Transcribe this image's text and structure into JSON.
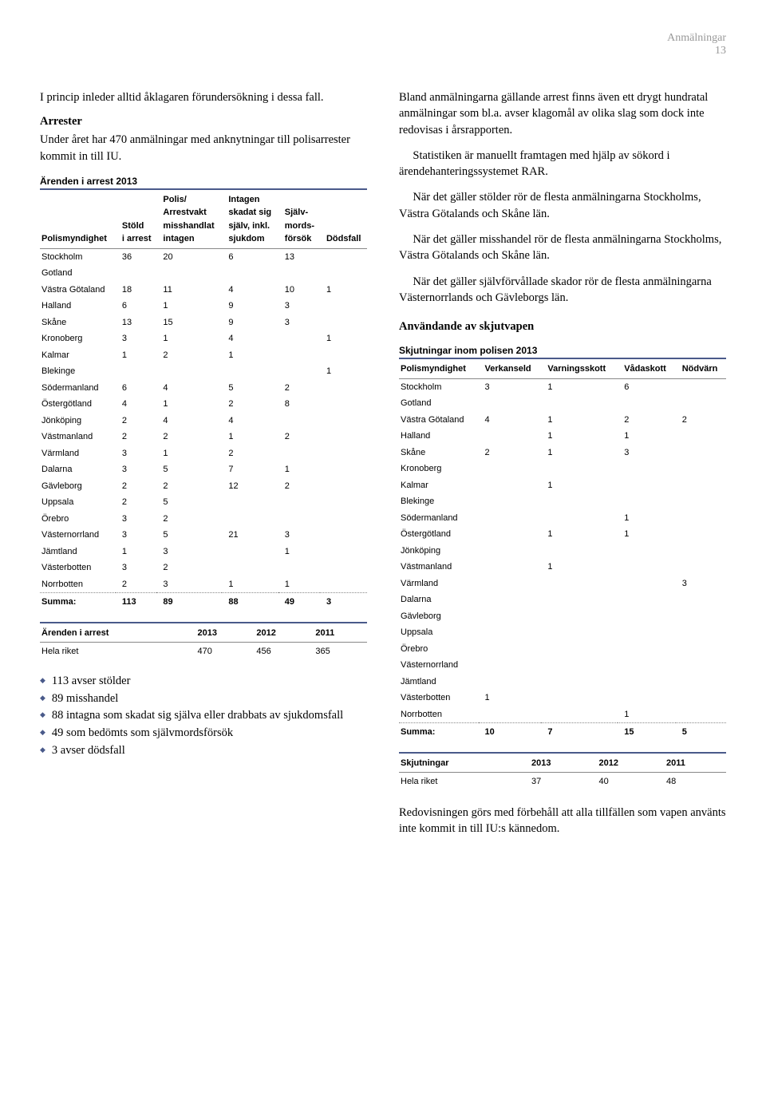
{
  "header": {
    "section": "Anmälningar",
    "page": "13"
  },
  "left": {
    "intro": "I princip inleder alltid åklagaren förundersökning i dessa fall.",
    "arrester_head": "Arrester",
    "arrester_text": "Under året har 470 anmälningar med anknytningar till polisarrester kommit in till IU.",
    "table1": {
      "title": "Ärenden i arrest 2013",
      "cols": [
        "Polismyndighet",
        "Stöld i arrest",
        "Polis/ Arrestvakt misshandlat intagen",
        "Intagen skadat sig själv, inkl. sjukdom",
        "Själv-mords-försök",
        "Dödsfall"
      ],
      "rows": [
        [
          "Stockholm",
          "36",
          "20",
          "6",
          "13",
          ""
        ],
        [
          "Gotland",
          "",
          "",
          "",
          "",
          ""
        ],
        [
          "Västra Götaland",
          "18",
          "11",
          "4",
          "10",
          "1"
        ],
        [
          "Halland",
          "6",
          "1",
          "9",
          "3",
          ""
        ],
        [
          "Skåne",
          "13",
          "15",
          "9",
          "3",
          ""
        ],
        [
          "Kronoberg",
          "3",
          "1",
          "4",
          "",
          "1"
        ],
        [
          "Kalmar",
          "1",
          "2",
          "1",
          "",
          ""
        ],
        [
          "Blekinge",
          "",
          "",
          "",
          "",
          "1"
        ],
        [
          "Södermanland",
          "6",
          "4",
          "5",
          "2",
          ""
        ],
        [
          "Östergötland",
          "4",
          "1",
          "2",
          "8",
          ""
        ],
        [
          "Jönköping",
          "2",
          "4",
          "4",
          "",
          ""
        ],
        [
          "Västmanland",
          "2",
          "2",
          "1",
          "2",
          ""
        ],
        [
          "Värmland",
          "3",
          "1",
          "2",
          "",
          ""
        ],
        [
          "Dalarna",
          "3",
          "5",
          "7",
          "1",
          ""
        ],
        [
          "Gävleborg",
          "2",
          "2",
          "12",
          "2",
          ""
        ],
        [
          "Uppsala",
          "2",
          "5",
          "",
          "",
          ""
        ],
        [
          "Örebro",
          "3",
          "2",
          "",
          "",
          ""
        ],
        [
          "Västernorrland",
          "3",
          "5",
          "21",
          "3",
          ""
        ],
        [
          "Jämtland",
          "1",
          "3",
          "",
          "1",
          ""
        ],
        [
          "Västerbotten",
          "3",
          "2",
          "",
          "",
          ""
        ],
        [
          "Norrbotten",
          "2",
          "3",
          "1",
          "1",
          ""
        ]
      ],
      "summa": [
        "Summa:",
        "113",
        "89",
        "88",
        "49",
        "3"
      ]
    },
    "table2": {
      "title": "",
      "cols": [
        "Ärenden i arrest",
        "2013",
        "2012",
        "2011"
      ],
      "rows": [
        [
          "Hela riket",
          "470",
          "456",
          "365"
        ]
      ]
    },
    "bullets": [
      "113 avser stölder",
      "89 misshandel",
      "88 intagna som skadat sig själva eller drabbats av sjukdomsfall",
      "49 som bedömts som självmordsförsök",
      "3 avser dödsfall"
    ]
  },
  "right": {
    "p1": "Bland anmälningarna gällande arrest finns även ett drygt hundratal anmälningar som bl.a. avser klagomål av olika slag som dock inte redovisas i årsrapporten.",
    "p2": "Statistiken är manuellt framtagen med hjälp av sökord i ärendehanteringssystemet RAR.",
    "p3": "När det gäller stölder rör de flesta anmälningarna Stockholms, Västra Götalands och Skåne län.",
    "p4": "När det gäller misshandel rör de flesta anmälningarna Stockholms, Västra Götalands och Skåne län.",
    "p5": "När det gäller självförvållade skador rör de flesta anmälningarna Västernorrlands och Gävleborgs län.",
    "skjut_head": "Användande av skjutvapen",
    "table3": {
      "title": "Skjutningar inom polisen 2013",
      "cols": [
        "Polismyndighet",
        "Verkanseld",
        "Varningsskott",
        "Vådaskott",
        "Nödvärn"
      ],
      "rows": [
        [
          "Stockholm",
          "3",
          "1",
          "6",
          ""
        ],
        [
          "Gotland",
          "",
          "",
          "",
          ""
        ],
        [
          "Västra Götaland",
          "4",
          "1",
          "2",
          "2"
        ],
        [
          "Halland",
          "",
          "1",
          "1",
          ""
        ],
        [
          "Skåne",
          "2",
          "1",
          "3",
          ""
        ],
        [
          "Kronoberg",
          "",
          "",
          "",
          ""
        ],
        [
          "Kalmar",
          "",
          "1",
          "",
          ""
        ],
        [
          "Blekinge",
          "",
          "",
          "",
          ""
        ],
        [
          "Södermanland",
          "",
          "",
          "1",
          ""
        ],
        [
          "Östergötland",
          "",
          "1",
          "1",
          ""
        ],
        [
          "Jönköping",
          "",
          "",
          "",
          ""
        ],
        [
          "Västmanland",
          "",
          "1",
          "",
          ""
        ],
        [
          "Värmland",
          "",
          "",
          "",
          "3"
        ],
        [
          "Dalarna",
          "",
          "",
          "",
          ""
        ],
        [
          "Gävleborg",
          "",
          "",
          "",
          ""
        ],
        [
          "Uppsala",
          "",
          "",
          "",
          ""
        ],
        [
          "Örebro",
          "",
          "",
          "",
          ""
        ],
        [
          "Västernorrland",
          "",
          "",
          "",
          ""
        ],
        [
          "Jämtland",
          "",
          "",
          "",
          ""
        ],
        [
          "Västerbotten",
          "1",
          "",
          "",
          ""
        ],
        [
          "Norrbotten",
          "",
          "",
          "1",
          ""
        ]
      ],
      "summa": [
        "Summa:",
        "10",
        "7",
        "15",
        "5"
      ]
    },
    "table4": {
      "cols": [
        "Skjutningar",
        "2013",
        "2012",
        "2011"
      ],
      "rows": [
        [
          "Hela riket",
          "37",
          "40",
          "48"
        ]
      ]
    },
    "closing": "Redovisningen görs med förbehåll att alla tillfällen som vapen använts inte kommit in till IU:s kännedom."
  }
}
